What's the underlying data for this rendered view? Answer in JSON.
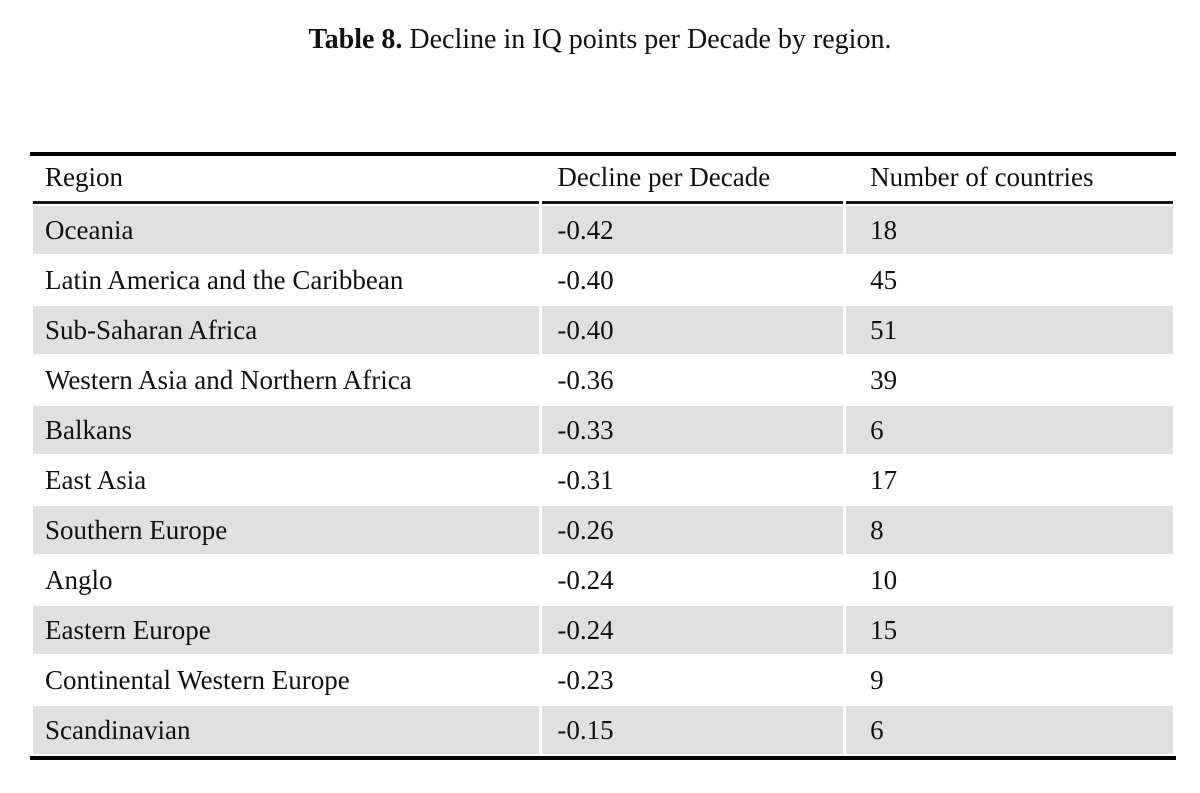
{
  "caption": {
    "label": "Table 8.",
    "text": " Decline in IQ points per Decade by region."
  },
  "table": {
    "columns": [
      "Region",
      "Decline per Decade",
      "Number of countries"
    ],
    "rows": [
      {
        "region": "Oceania",
        "decline": "-0.42",
        "countries": "18"
      },
      {
        "region": "Latin America and the Caribbean",
        "decline": "-0.40",
        "countries": "45"
      },
      {
        "region": "Sub-Saharan Africa",
        "decline": "-0.40",
        "countries": "51"
      },
      {
        "region": "Western Asia and Northern Africa",
        "decline": "-0.36",
        "countries": "39"
      },
      {
        "region": "Balkans",
        "decline": "-0.33",
        "countries": "6"
      },
      {
        "region": "East Asia",
        "decline": "-0.31",
        "countries": "17"
      },
      {
        "region": "Southern Europe",
        "decline": "-0.26",
        "countries": "8"
      },
      {
        "region": "Anglo",
        "decline": "-0.24",
        "countries": "10"
      },
      {
        "region": "Eastern Europe",
        "decline": "-0.24",
        "countries": "15"
      },
      {
        "region": "Continental Western Europe",
        "decline": "-0.23",
        "countries": "9"
      },
      {
        "region": "Scandinavian",
        "decline": "-0.15",
        "countries": "6"
      }
    ]
  },
  "colors": {
    "row_shade": "#e0e0e0",
    "rule": "#000000",
    "text": "#111111"
  }
}
